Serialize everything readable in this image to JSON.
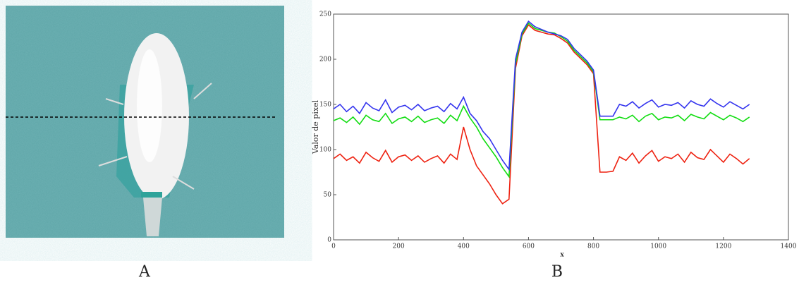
{
  "panel_labels": [
    "A",
    "B"
  ],
  "chart_data": {
    "type": "line",
    "xlabel": "x",
    "ylabel": "Valor de pixel",
    "xlim": [
      0,
      1400
    ],
    "xticks": [
      0,
      200,
      400,
      600,
      800,
      1000,
      1200,
      1400
    ],
    "ylim": [
      0,
      250
    ],
    "yticks": [
      0,
      50,
      100,
      150,
      200,
      250
    ],
    "x": [
      0,
      20,
      40,
      60,
      80,
      100,
      120,
      140,
      160,
      180,
      200,
      220,
      240,
      260,
      280,
      300,
      320,
      340,
      360,
      380,
      400,
      420,
      440,
      460,
      480,
      500,
      520,
      540,
      560,
      580,
      600,
      620,
      640,
      660,
      680,
      700,
      720,
      740,
      760,
      780,
      800,
      820,
      840,
      860,
      880,
      900,
      920,
      940,
      960,
      980,
      1000,
      1020,
      1040,
      1060,
      1080,
      1100,
      1120,
      1140,
      1160,
      1180,
      1200,
      1220,
      1240,
      1260,
      1280
    ],
    "series": [
      {
        "color": "#ee2211",
        "values": [
          90,
          95,
          88,
          92,
          85,
          97,
          91,
          87,
          99,
          86,
          92,
          94,
          88,
          93,
          86,
          90,
          93,
          85,
          95,
          89,
          125,
          100,
          82,
          72,
          62,
          50,
          40,
          45,
          190,
          226,
          238,
          232,
          230,
          228,
          227,
          223,
          218,
          208,
          201,
          194,
          184,
          75,
          75,
          76,
          92,
          88,
          96,
          85,
          93,
          99,
          87,
          92,
          90,
          95,
          86,
          97,
          91,
          89,
          100,
          93,
          86,
          95,
          90,
          84,
          90
        ]
      },
      {
        "color": "#11dd11",
        "values": [
          132,
          135,
          130,
          136,
          128,
          138,
          133,
          131,
          140,
          129,
          134,
          136,
          131,
          137,
          130,
          133,
          135,
          129,
          138,
          132,
          148,
          135,
          125,
          112,
          102,
          92,
          80,
          70,
          195,
          228,
          240,
          234,
          232,
          230,
          229,
          225,
          220,
          210,
          203,
          196,
          186,
          133,
          133,
          133,
          136,
          134,
          138,
          131,
          137,
          140,
          133,
          136,
          135,
          138,
          132,
          139,
          136,
          134,
          141,
          137,
          133,
          138,
          135,
          131,
          136
        ]
      },
      {
        "color": "#3333ee",
        "values": [
          145,
          150,
          142,
          148,
          140,
          152,
          146,
          143,
          155,
          141,
          147,
          149,
          144,
          150,
          143,
          146,
          148,
          142,
          151,
          145,
          158,
          140,
          132,
          120,
          112,
          100,
          88,
          78,
          200,
          230,
          242,
          236,
          233,
          230,
          228,
          226,
          222,
          212,
          205,
          198,
          188,
          137,
          137,
          137,
          150,
          148,
          153,
          146,
          151,
          155,
          147,
          150,
          149,
          152,
          146,
          154,
          150,
          148,
          156,
          151,
          147,
          153,
          149,
          145,
          150
        ]
      }
    ]
  }
}
